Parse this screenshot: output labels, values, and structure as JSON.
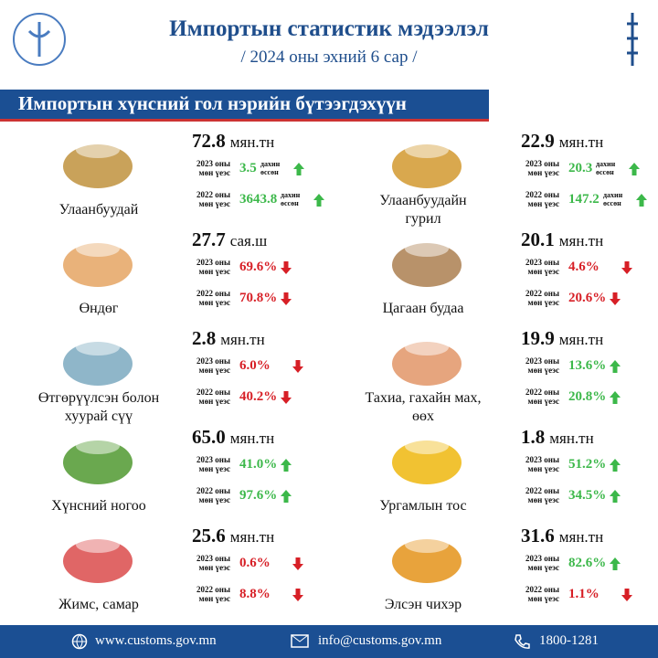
{
  "header": {
    "title": "Импортын статистик мэдээлэл",
    "subtitle": "/ 2024 оны эхний 6 сар /"
  },
  "section_title": "Импортын хүнсний гол нэрийн бүтээгдэхүүн",
  "items": [
    {
      "name": "Улаанбуудай",
      "amount": "72.8",
      "unit": "мян.тн",
      "icon": "#c9a25a",
      "rows": [
        {
          "label": "2023 оны мөн үеэс",
          "value": "3.5",
          "note": "дахин өссөн",
          "direction": "up"
        },
        {
          "label": "2022 оны мөн үеэс",
          "value": "3643.8",
          "note": "дахин өссөн",
          "direction": "up"
        }
      ]
    },
    {
      "name": "Өндөг",
      "amount": "27.7",
      "unit": "сая.ш",
      "icon": "#e9b27a",
      "rows": [
        {
          "label": "2023 оны мөн үеэс",
          "value": "69.6%",
          "direction": "down"
        },
        {
          "label": "2022 оны мөн үеэс",
          "value": "70.8%",
          "direction": "down"
        }
      ]
    },
    {
      "name": "Өтгөрүүлсэн болон хуурай сүү",
      "amount": "2.8",
      "unit": "мян.тн",
      "icon": "#8fb6c9",
      "rows": [
        {
          "label": "2023 оны мөн үеэс",
          "value": "6.0%",
          "direction": "down"
        },
        {
          "label": "2022 оны мөн үеэс",
          "value": "40.2%",
          "direction": "down"
        }
      ]
    },
    {
      "name": "Хүнсний ногоо",
      "amount": "65.0",
      "unit": "мян.тн",
      "icon": "#6aa84f",
      "rows": [
        {
          "label": "2023 оны мөн үеэс",
          "value": "41.0%",
          "direction": "up"
        },
        {
          "label": "2022 оны мөн үеэс",
          "value": "97.6%",
          "direction": "up"
        }
      ]
    },
    {
      "name": "Жимс, самар",
      "amount": "25.6",
      "unit": "мян.тн",
      "icon": "#e06666",
      "rows": [
        {
          "label": "2023 оны мөн үеэс",
          "value": "0.6%",
          "direction": "down"
        },
        {
          "label": "2022 оны мөн үеэс",
          "value": "8.8%",
          "direction": "down"
        }
      ]
    },
    {
      "name": "Улаанбуудайн гурил",
      "amount": "22.9",
      "unit": "мян.тн",
      "icon": "#d9a84e",
      "rows": [
        {
          "label": "2023 оны мөн үеэс",
          "value": "20.3",
          "note": "дахин өссөн",
          "direction": "up"
        },
        {
          "label": "2022 оны мөн үеэс",
          "value": "147.2",
          "note": "дахин өссөн",
          "direction": "up"
        }
      ]
    },
    {
      "name": "Цагаан будаа",
      "amount": "20.1",
      "unit": "мян.тн",
      "icon": "#b8926a",
      "rows": [
        {
          "label": "2023 оны мөн үеэс",
          "value": "4.6%",
          "direction": "down"
        },
        {
          "label": "2022 оны мөн үеэс",
          "value": "20.6%",
          "direction": "down"
        }
      ]
    },
    {
      "name": "Тахиа, гахайн мах, өөх",
      "amount": "19.9",
      "unit": "мян.тн",
      "icon": "#e6a57e",
      "rows": [
        {
          "label": "2023 оны мөн үеэс",
          "value": "13.6%",
          "direction": "up"
        },
        {
          "label": "2022 оны мөн үеэс",
          "value": "20.8%",
          "direction": "up"
        }
      ]
    },
    {
      "name": "Ургамлын тос",
      "amount": "1.8",
      "unit": "мян.тн",
      "icon": "#f1c232",
      "rows": [
        {
          "label": "2023 оны мөн үеэс",
          "value": "51.2%",
          "direction": "up"
        },
        {
          "label": "2022 оны мөн үеэс",
          "value": "34.5%",
          "direction": "up"
        }
      ]
    },
    {
      "name": "Элсэн чихэр",
      "amount": "31.6",
      "unit": "мян.тн",
      "icon": "#e8a33c",
      "rows": [
        {
          "label": "2023 оны мөн үеэс",
          "value": "82.6%",
          "direction": "up"
        },
        {
          "label": "2022 оны мөн үеэс",
          "value": "1.1%",
          "direction": "down"
        }
      ]
    }
  ],
  "footer": {
    "website": "www.customs.gov.mn",
    "email": "info@customs.gov.mn",
    "phone": "1800-1281"
  }
}
